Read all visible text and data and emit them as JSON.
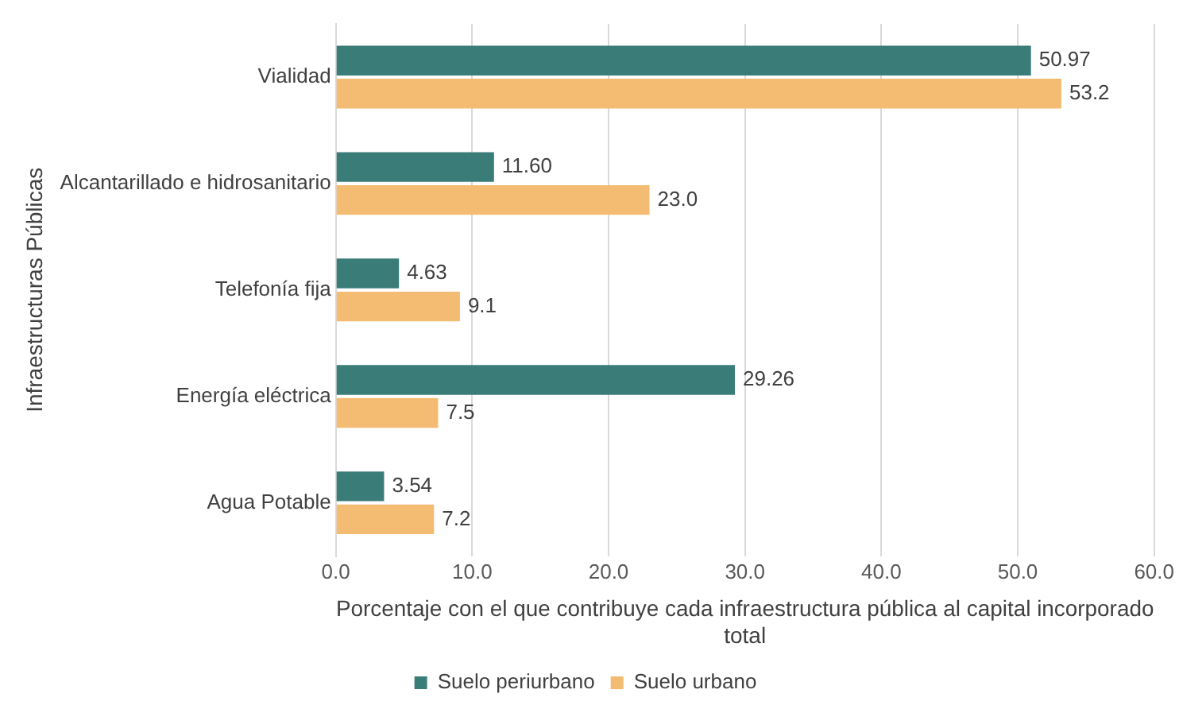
{
  "chart_data": {
    "type": "bar",
    "orientation": "horizontal",
    "xlabel": "Porcentaje con el que contribuye cada infraestructura pública al capital incorporado total",
    "ylabel": "Infraestructuras Públicas",
    "categories": [
      "Vialidad",
      "Alcantarillado e hidrosanitario",
      "Telefonía fija",
      "Energía eléctrica",
      "Agua Potable"
    ],
    "series": [
      {
        "name": "Suelo periurbano",
        "color": "#3a7d78",
        "values": [
          50.97,
          11.6,
          4.63,
          29.26,
          3.54
        ],
        "value_labels": [
          "50.97",
          "11.60",
          "4.63",
          "29.26",
          "3.54"
        ]
      },
      {
        "name": "Suelo urbano",
        "color": "#f3bc72",
        "values": [
          53.2,
          23.0,
          9.1,
          7.5,
          7.2
        ],
        "value_labels": [
          "53.2",
          "23.0",
          "9.1",
          "7.5",
          "7.2"
        ]
      }
    ],
    "xlim": [
      0,
      60
    ],
    "xticks": [
      {
        "value": 0,
        "label": "0.0"
      },
      {
        "value": 10,
        "label": "10.0"
      },
      {
        "value": 20,
        "label": "20.0"
      },
      {
        "value": 30,
        "label": "30.0"
      },
      {
        "value": 40,
        "label": "40.0"
      },
      {
        "value": 50,
        "label": "50.0"
      },
      {
        "value": 60,
        "label": "60.0"
      }
    ],
    "grid": "x",
    "legend": "bottom"
  }
}
